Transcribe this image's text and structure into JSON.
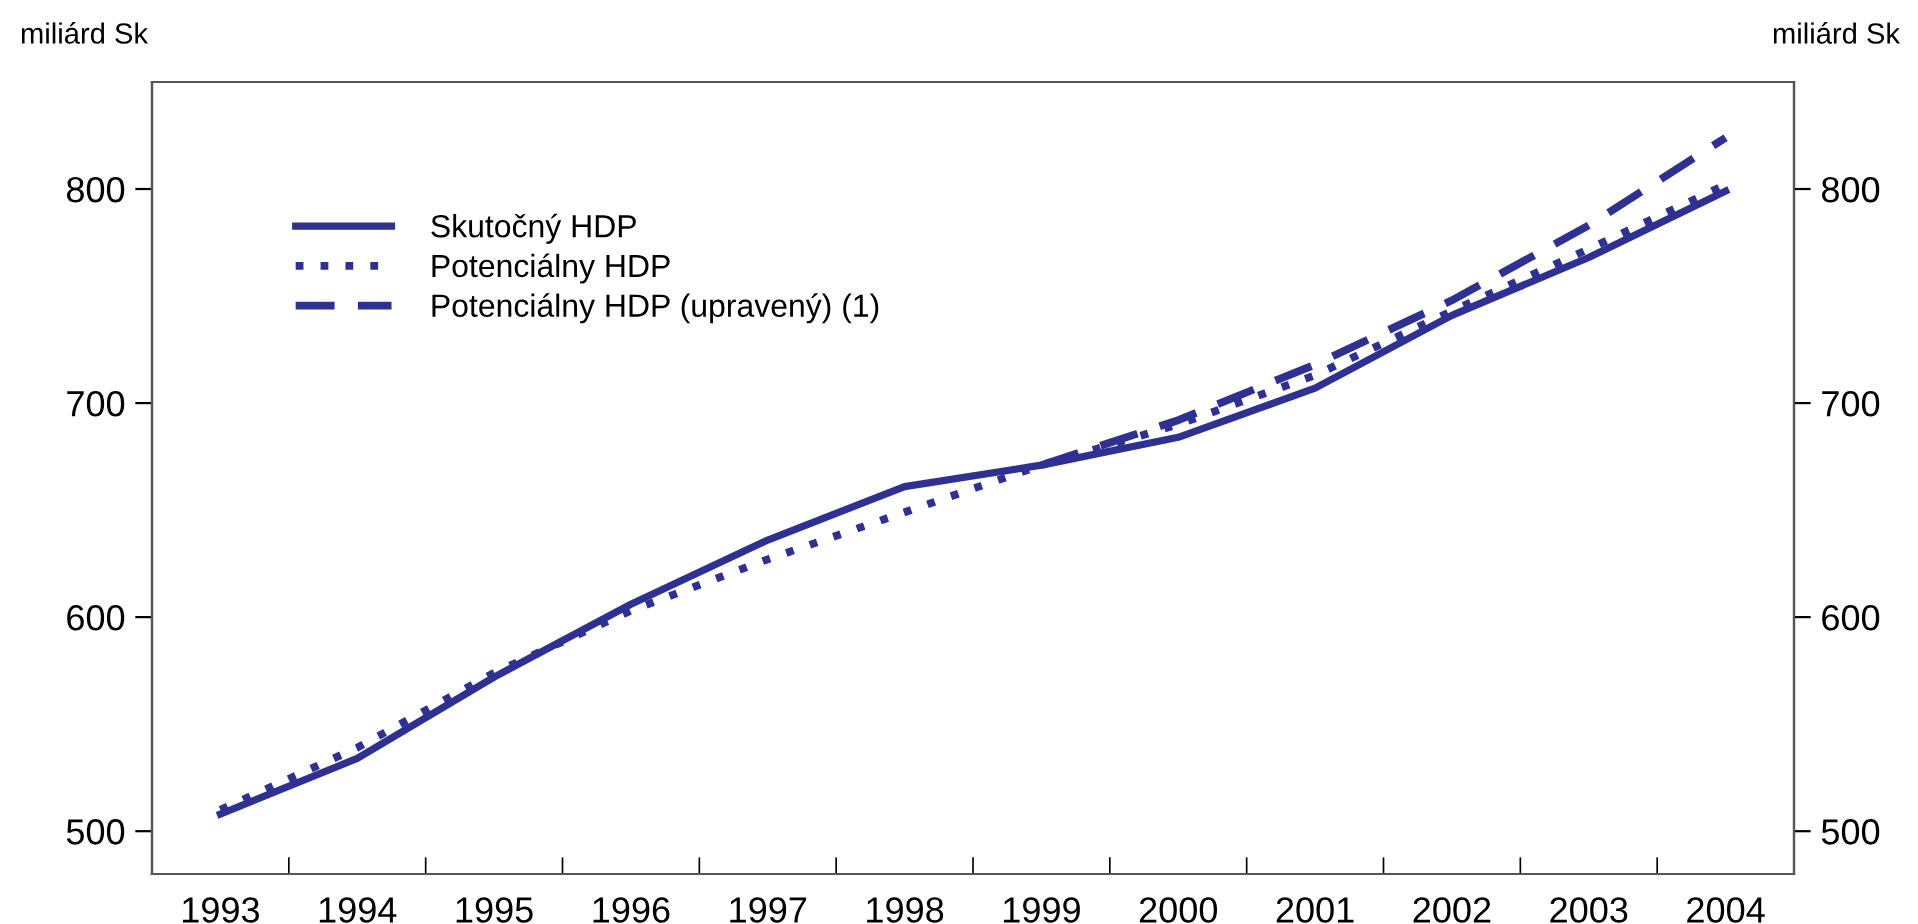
{
  "chart_data": {
    "type": "line",
    "ylabel": "miliárd Sk",
    "y2label": "miliárd Sk",
    "categories": [
      "1993",
      "1994",
      "1995",
      "1996",
      "1997",
      "1998",
      "1999",
      "2000",
      "2001",
      "2002",
      "2003",
      "2004"
    ],
    "series": [
      {
        "name": "Skutočný HDP",
        "color": "#2e3192",
        "line_style": "solid",
        "values": [
          508,
          534,
          572,
          606,
          636,
          661,
          671,
          684,
          707,
          741,
          768,
          799
        ]
      },
      {
        "name": "Potenciálny HDP",
        "color": "#2e3192",
        "line_style": "dotted",
        "values": [
          510,
          539,
          574,
          603,
          627,
          649,
          671,
          690,
          713,
          743,
          772,
          802
        ]
      },
      {
        "name": "Potenciálny HDP (upravený) (1)",
        "color": "#2e3192",
        "line_style": "dashed",
        "values": [
          null,
          null,
          null,
          null,
          null,
          null,
          671,
          692,
          718,
          748,
          783,
          824
        ]
      }
    ],
    "ylim": [
      480,
      850
    ],
    "yticks": [
      500,
      600,
      700,
      800
    ],
    "y2lim": [
      480,
      850
    ],
    "y2ticks": [
      500,
      600,
      700,
      800
    ],
    "grid": false,
    "legend": "top left",
    "marker": "none"
  }
}
